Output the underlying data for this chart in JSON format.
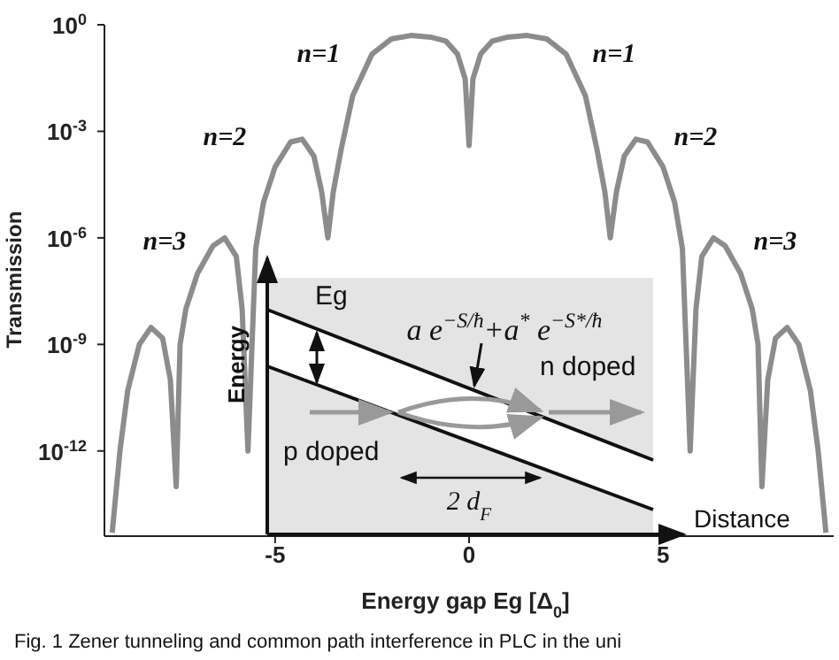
{
  "chart_data": {
    "type": "line",
    "xlabel": "Energy gap Eg [Δ$_{0}$]",
    "ylabel": "Transmission",
    "log": "y",
    "color": "#8c8c8c",
    "x": [
      -9.2,
      -9.0,
      -8.8,
      -8.5,
      -8.2,
      -7.9,
      -7.7,
      -7.55,
      -7.45,
      -7.3,
      -7.0,
      -6.6,
      -6.3,
      -6.0,
      -5.85,
      -5.7,
      -5.5,
      -5.3,
      -5.0,
      -4.6,
      -4.3,
      -4.0,
      -3.8,
      -3.64,
      -3.5,
      -3.3,
      -3.0,
      -2.5,
      -2.0,
      -1.5,
      -1.0,
      -0.6,
      -0.3,
      -0.1,
      0,
      0.1,
      0.3,
      0.6,
      1.0,
      1.5,
      2.0,
      2.5,
      3.0,
      3.3,
      3.5,
      3.64,
      3.8,
      4.0,
      4.3,
      4.6,
      5.0,
      5.3,
      5.5,
      5.7,
      5.85,
      6.0,
      6.3,
      6.6,
      7.0,
      7.3,
      7.45,
      7.55,
      7.7,
      7.9,
      8.2,
      8.5,
      8.8,
      9.0,
      9.2
    ],
    "values": [
      5e-15,
      1e-12,
      5e-11,
      1e-09,
      3e-09,
      1.5e-09,
      1e-10,
      1e-13,
      1e-09,
      1e-08,
      1e-07,
      6e-07,
      1e-06,
      3e-07,
      1e-08,
      1e-12,
      5e-07,
      1e-05,
      0.0001,
      0.0005,
      0.0006,
      0.0002,
      2e-05,
      1e-06,
      2e-05,
      0.0003,
      0.01,
      0.15,
      0.4,
      0.5,
      0.45,
      0.35,
      0.15,
      0.03,
      0.0004,
      0.03,
      0.15,
      0.35,
      0.45,
      0.5,
      0.4,
      0.15,
      0.01,
      0.0003,
      2e-05,
      1e-06,
      2e-05,
      0.0002,
      0.0006,
      0.0005,
      0.0001,
      1e-05,
      5e-07,
      1e-12,
      1e-08,
      3e-07,
      1e-06,
      6e-07,
      1e-07,
      1e-08,
      1e-09,
      1e-13,
      1e-10,
      1.5e-09,
      3e-09,
      1e-09,
      5e-11,
      1e-12,
      5e-15
    ],
    "xlim": [
      -9.4,
      9.4
    ],
    "xticks": [
      -5,
      0,
      5
    ],
    "ylim": [
      4e-15,
      1
    ],
    "yticks": [
      {
        "value": 1,
        "label": "10$^{0}$"
      },
      {
        "value": 0.001,
        "label": "10$^{-3}$"
      },
      {
        "value": 1e-06,
        "label": "10$^{-6}$"
      },
      {
        "value": 1e-09,
        "label": "10$^{-9}$"
      },
      {
        "value": 1e-12,
        "label": "10$^{-12}$"
      }
    ],
    "annotations": [
      "n=1",
      "n=1",
      "n=2",
      "n=2",
      "n=3",
      "n=3",
      "Eg",
      "a e$^{−S/ħ}$+a$^{*}$ e$^{−S*/ħ}$",
      "n doped",
      "p doped",
      "2 d$_{F}$",
      "Energy",
      "Distance",
      "Fig. 1   Zener tunneling and common path interference in PLC in the uni"
    ]
  }
}
